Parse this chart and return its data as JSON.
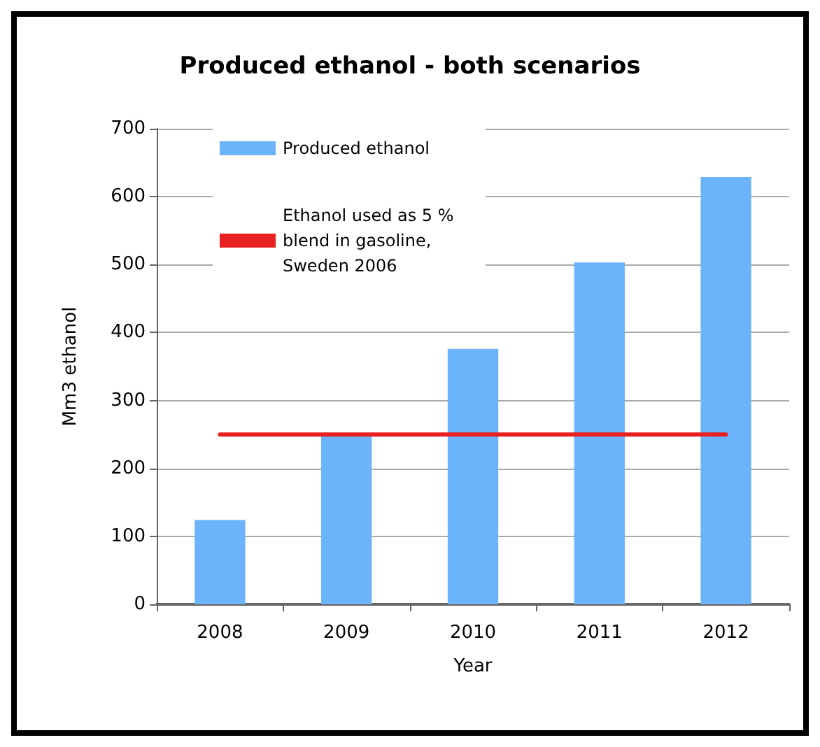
{
  "chart_data": {
    "type": "bar",
    "title": "Produced ethanol - both scenarios",
    "xlabel": "Year",
    "ylabel": "Mm3 ethanol",
    "categories": [
      "2008",
      "2009",
      "2010",
      "2011",
      "2012"
    ],
    "series": [
      {
        "name": "Produced ethanol",
        "color": "#6bb3fa",
        "values": [
          124,
          250,
          376,
          503,
          629
        ]
      },
      {
        "name": "Ethanol used as 5 % blend in gasoline, Sweden 2006",
        "type": "line",
        "color": "#e8201f",
        "values": [
          250,
          250,
          250,
          250,
          250
        ],
        "marker": "none"
      }
    ],
    "ylim": [
      0,
      700
    ],
    "yticks": [
      0,
      100,
      200,
      300,
      400,
      500,
      600,
      700
    ],
    "grid": "y",
    "legend": "top left"
  }
}
